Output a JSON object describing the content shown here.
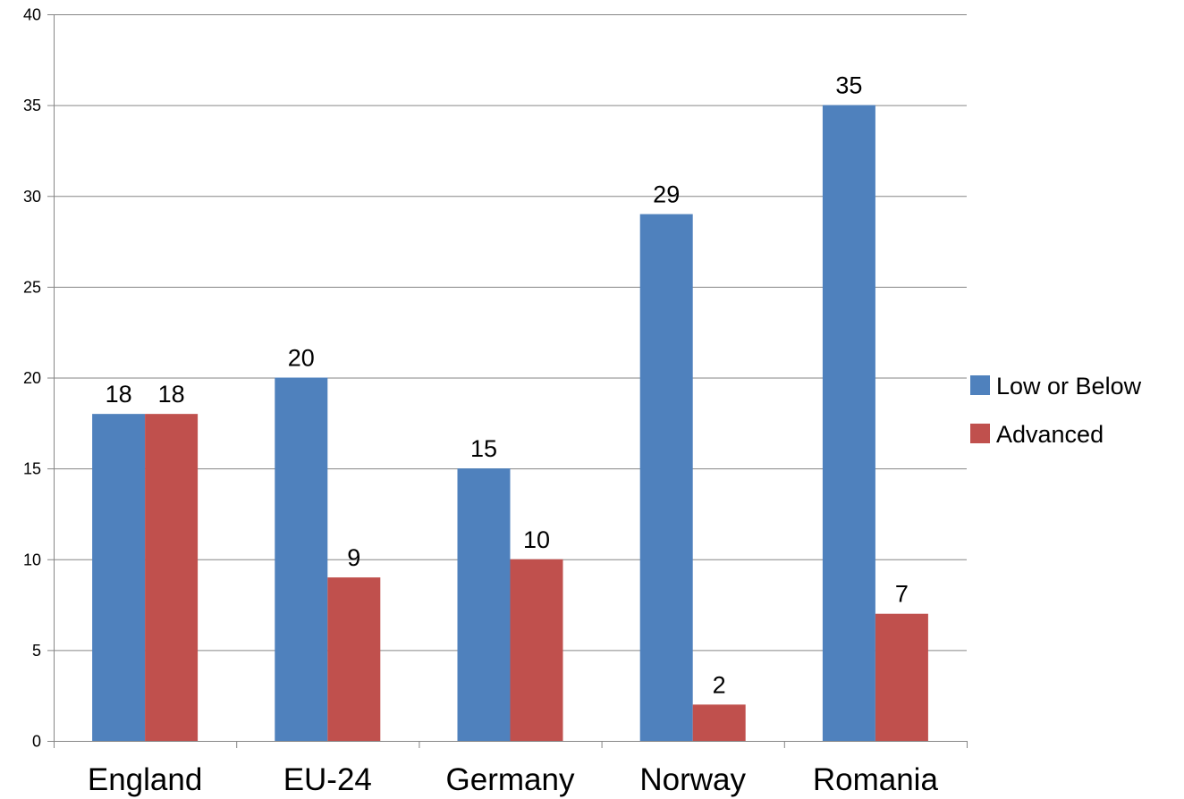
{
  "chart_data": {
    "type": "bar",
    "categories": [
      "England",
      "EU-24",
      "Germany",
      "Norway",
      "Romania"
    ],
    "series": [
      {
        "name": "Low or Below",
        "values": [
          18,
          20,
          15,
          29,
          35
        ],
        "color": "#4F81BD"
      },
      {
        "name": "Advanced",
        "values": [
          18,
          9,
          10,
          2,
          7
        ],
        "color": "#C0504D"
      }
    ],
    "yticks": [
      0,
      5,
      10,
      15,
      20,
      25,
      30,
      35,
      40
    ],
    "ylim": [
      0,
      40
    ],
    "grid": true,
    "legend_position": "right",
    "data_labels": true,
    "title": "",
    "xlabel": "",
    "ylabel": ""
  }
}
